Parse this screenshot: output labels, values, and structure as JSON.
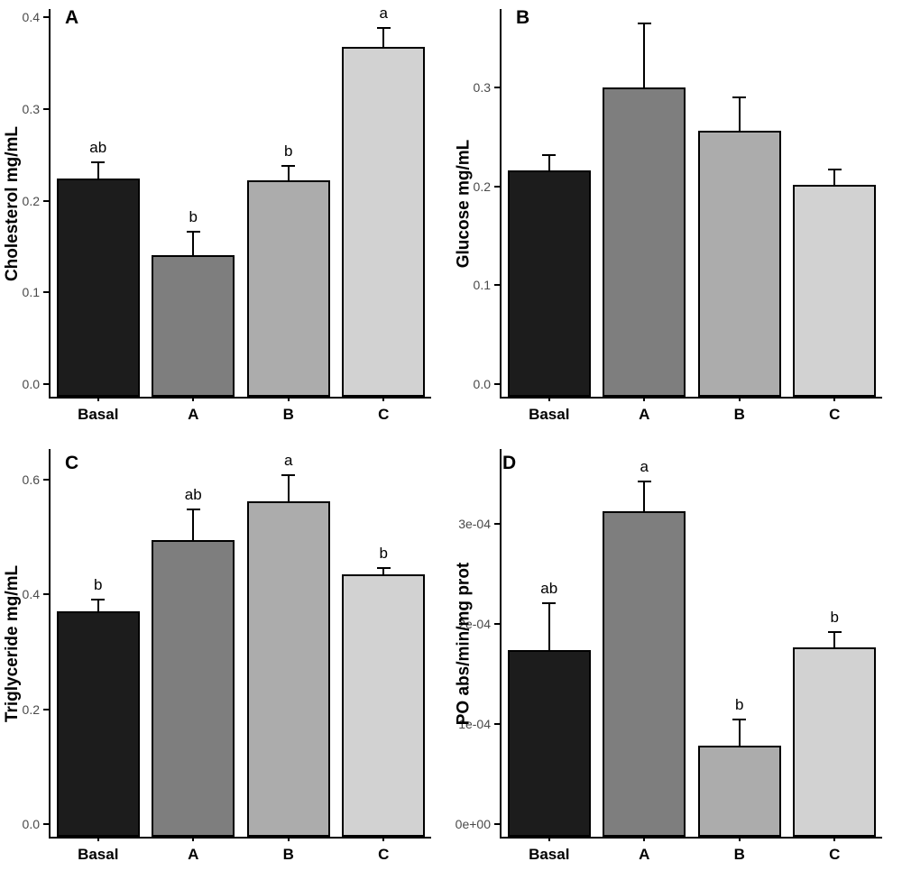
{
  "figure": {
    "background": "#ffffff",
    "axis_color": "#000000",
    "tick_label_color": "#4a4a4a",
    "bar_colors": [
      "#1c1c1c",
      "#7e7e7e",
      "#acacac",
      "#d2d2d2"
    ],
    "bar_outline_color": "#000000"
  },
  "chart_data": [
    {
      "type": "bar",
      "panel_label": "A",
      "ylabel": "Cholesterol mg/mL",
      "categories": [
        "Basal",
        "A",
        "B",
        "C"
      ],
      "values": [
        0.224,
        0.141,
        0.222,
        0.368
      ],
      "error_upper": [
        0.243,
        0.167,
        0.239,
        0.389
      ],
      "sig_letters": [
        "ab",
        "b",
        "b",
        "a"
      ],
      "yticks": [
        0.0,
        0.1,
        0.2,
        0.3,
        0.4
      ],
      "ytick_labels": [
        "0.0",
        "0.1",
        "0.2",
        "0.3",
        "0.4"
      ],
      "ylim": [
        0,
        0.413
      ],
      "grid": false,
      "legend": false
    },
    {
      "type": "bar",
      "panel_label": "B",
      "ylabel": "Glucose mg/mL",
      "categories": [
        "Basal",
        "A",
        "B",
        "C"
      ],
      "values": [
        0.216,
        0.3,
        0.256,
        0.202
      ],
      "error_upper": [
        0.233,
        0.366,
        0.291,
        0.218
      ],
      "sig_letters": [
        "",
        "",
        "",
        ""
      ],
      "yticks": [
        0.0,
        0.1,
        0.2,
        0.3
      ],
      "ytick_labels": [
        "0.0",
        "0.1",
        "0.2",
        "0.3"
      ],
      "ylim": [
        0,
        0.383
      ],
      "grid": false,
      "legend": false
    },
    {
      "type": "bar",
      "panel_label": "C",
      "ylabel": "Triglyceride mg/mL",
      "categories": [
        "Basal",
        "A",
        "B",
        "C"
      ],
      "values": [
        0.37,
        0.494,
        0.562,
        0.435
      ],
      "error_upper": [
        0.392,
        0.549,
        0.609,
        0.447
      ],
      "sig_letters": [
        "b",
        "ab",
        "a",
        "b"
      ],
      "yticks": [
        0.0,
        0.2,
        0.4,
        0.6
      ],
      "ytick_labels": [
        "0.0",
        "0.2",
        "0.4",
        "0.6"
      ],
      "ylim": [
        0,
        0.659
      ],
      "grid": false,
      "legend": false
    },
    {
      "type": "bar",
      "panel_label": "D",
      "ylabel": "PO abs/min/mg prot",
      "categories": [
        "Basal",
        "A",
        "B",
        "C"
      ],
      "values": [
        0.000174,
        0.000312,
        7.8e-05,
        0.000176
      ],
      "error_upper": [
        0.000221,
        0.000343,
        0.000105,
        0.000193
      ],
      "sig_letters": [
        "ab",
        "a",
        "b",
        "b"
      ],
      "yticks": [
        0,
        0.0001,
        0.0002,
        0.0003
      ],
      "ytick_labels": [
        "0e+00",
        "1e-04",
        "2e-04",
        "3e-04"
      ],
      "ylim": [
        0,
        0.000378
      ],
      "grid": false,
      "legend": false
    }
  ]
}
